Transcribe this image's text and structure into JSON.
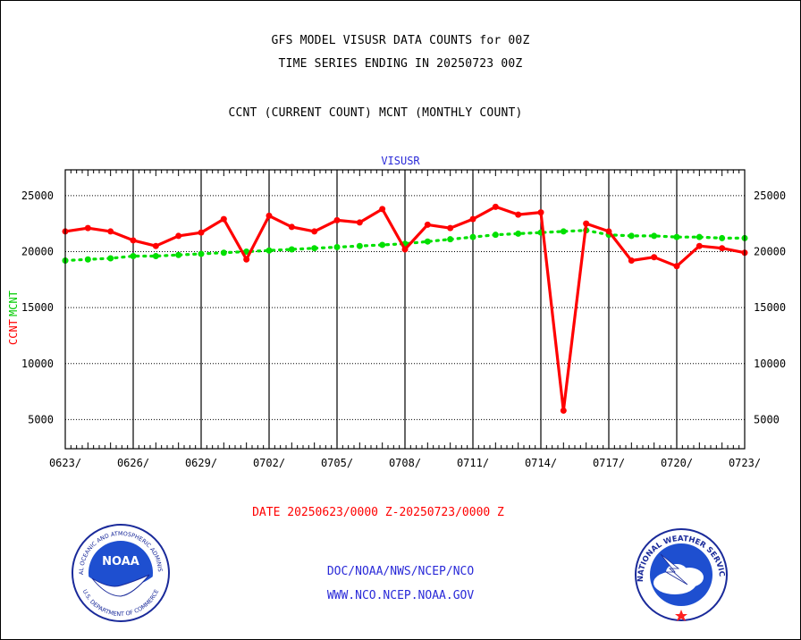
{
  "header": {
    "title_line1": "GFS MODEL VISUSR DATA COUNTS for 00Z",
    "title_line2": "TIME SERIES ENDING IN 20250723 00Z",
    "subtitle": "CCNT (CURRENT COUNT) MCNT (MONTHLY COUNT)"
  },
  "footer": {
    "date_range": "DATE 20250623/0000 Z-20250723/0000 Z",
    "org_path": "DOC/NOAA/NWS/NCEP/NCO",
    "website": "WWW.NCO.NCEP.NOAA.GOV"
  },
  "logos": {
    "noaa_text": "NOAA",
    "noaa_ring": "NATIONAL OCEANIC AND ATMOSPHERIC ADMINISTRATION",
    "noaa_ring_bottom": "U.S. DEPARTMENT OF COMMERCE",
    "nws_ring": "NATIONAL WEATHER SERVICE"
  },
  "chart_data": {
    "type": "line",
    "title": "VISUSR",
    "ylabel_left": "CCNT",
    "ylabel_right": "MCNT",
    "x_tick_labels": [
      "0623/",
      "0626/",
      "0629/",
      "0702/",
      "0705/",
      "0708/",
      "0711/",
      "0714/",
      "0717/",
      "0720/",
      "0723/"
    ],
    "y_ticks": [
      5000,
      10000,
      15000,
      20000,
      25000
    ],
    "ylim": [
      2400,
      27300
    ],
    "grid": true,
    "series": [
      {
        "name": "CCNT",
        "color": "#ff0000",
        "style": "solid",
        "values": [
          21800,
          22100,
          21800,
          21000,
          20500,
          21400,
          21700,
          22900,
          19300,
          23200,
          22200,
          21800,
          22800,
          22600,
          23800,
          20200,
          22400,
          22100,
          22900,
          24000,
          23300,
          23500,
          5800,
          22500,
          21800,
          19200,
          19500,
          18700,
          20500,
          20300,
          19900
        ]
      },
      {
        "name": "MCNT",
        "color": "#00e000",
        "style": "dotted",
        "values": [
          19200,
          19300,
          19400,
          19600,
          19600,
          19700,
          19800,
          19900,
          20000,
          20100,
          20200,
          20300,
          20400,
          20500,
          20600,
          20700,
          20900,
          21100,
          21300,
          21500,
          21600,
          21700,
          21800,
          21900,
          21500,
          21400,
          21400,
          21300,
          21300,
          21200,
          21200
        ]
      }
    ]
  }
}
